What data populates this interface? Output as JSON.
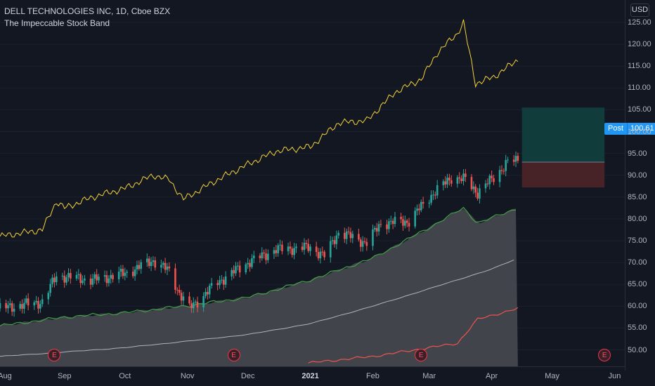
{
  "header": {
    "symbol_line": "DELL TECHNOLOGIES INC, 1D, Cboe BZX",
    "indicator_name": "The Impeccable Stock Band"
  },
  "currency": "USD",
  "position": {
    "label": "Post",
    "value": "100.61"
  },
  "earnings_marker": "E",
  "colors": {
    "background": "#131722",
    "up_candle": "#26a69a",
    "down_candle": "#ef5350",
    "upper_line": "#f5d33b",
    "band_fill": "#4a4c52",
    "band_upper": "#43a047",
    "band_lower": "#ef5350",
    "mid_line": "#b0b3b8",
    "target_zone": "#12403f",
    "stop_zone": "#4a2429",
    "post_tag": "#2196f3"
  },
  "axis": {
    "y_ticks": [
      "125.00",
      "120.00",
      "115.00",
      "110.00",
      "105.00",
      "100.00",
      "95.00",
      "90.00",
      "85.00",
      "80.00",
      "75.00",
      "70.00",
      "65.00",
      "60.00",
      "55.00",
      "50.00"
    ],
    "x_ticks": [
      {
        "label": "Aug",
        "year": false
      },
      {
        "label": "Sep",
        "year": false
      },
      {
        "label": "Oct",
        "year": false
      },
      {
        "label": "Nov",
        "year": false
      },
      {
        "label": "Dec",
        "year": false
      },
      {
        "label": "2021",
        "year": true
      },
      {
        "label": "Feb",
        "year": false
      },
      {
        "label": "Mar",
        "year": false
      },
      {
        "label": "Apr",
        "year": false
      },
      {
        "label": "May",
        "year": false
      },
      {
        "label": "Jun",
        "year": false
      }
    ]
  },
  "chart_data": {
    "type": "candlestick",
    "title": "DELL TECHNOLOGIES INC, 1D, Cboe BZX",
    "y_range": [
      47,
      129
    ],
    "x_range": [
      "2020-07-31",
      "2021-06-05"
    ],
    "price_anchors": [
      {
        "date": "2020-07-31",
        "close": 59.5
      },
      {
        "date": "2020-08-14",
        "close": 60.5
      },
      {
        "date": "2020-08-21",
        "close": 61.0
      },
      {
        "date": "2020-08-28",
        "close": 67.0
      },
      {
        "date": "2020-09-15",
        "close": 66.0
      },
      {
        "date": "2020-10-01",
        "close": 67.5
      },
      {
        "date": "2020-10-15",
        "close": 70.5
      },
      {
        "date": "2020-10-23",
        "close": 68.0
      },
      {
        "date": "2020-10-28",
        "close": 63.0
      },
      {
        "date": "2020-11-02",
        "close": 59.5
      },
      {
        "date": "2020-11-16",
        "close": 65.5
      },
      {
        "date": "2020-12-01",
        "close": 70.0
      },
      {
        "date": "2020-12-15",
        "close": 73.0
      },
      {
        "date": "2021-01-01",
        "close": 73.5
      },
      {
        "date": "2021-01-08",
        "close": 71.5
      },
      {
        "date": "2021-01-15",
        "close": 77.0
      },
      {
        "date": "2021-01-29",
        "close": 74.5
      },
      {
        "date": "2021-02-05",
        "close": 79.0
      },
      {
        "date": "2021-02-19",
        "close": 79.5
      },
      {
        "date": "2021-03-01",
        "close": 85.0
      },
      {
        "date": "2021-03-12",
        "close": 89.5
      },
      {
        "date": "2021-03-19",
        "close": 89.0
      },
      {
        "date": "2021-03-25",
        "close": 86.0
      },
      {
        "date": "2021-04-02",
        "close": 89.5
      },
      {
        "date": "2021-04-09",
        "close": 93.0
      },
      {
        "date": "2021-04-14",
        "close": 93.5
      }
    ],
    "upper_line": [
      {
        "date": "2020-07-31",
        "value": 76.0
      },
      {
        "date": "2020-08-21",
        "value": 77.5
      },
      {
        "date": "2020-08-28",
        "value": 84.0
      },
      {
        "date": "2020-09-01",
        "value": 82.5
      },
      {
        "date": "2020-09-15",
        "value": 85.0
      },
      {
        "date": "2020-10-01",
        "value": 87.0
      },
      {
        "date": "2020-10-15",
        "value": 90.0
      },
      {
        "date": "2020-10-23",
        "value": 89.0
      },
      {
        "date": "2020-10-30",
        "value": 84.5
      },
      {
        "date": "2020-11-16",
        "value": 89.0
      },
      {
        "date": "2020-12-01",
        "value": 92.5
      },
      {
        "date": "2020-12-15",
        "value": 95.5
      },
      {
        "date": "2021-01-01",
        "value": 96.5
      },
      {
        "date": "2021-01-15",
        "value": 102.0
      },
      {
        "date": "2021-01-29",
        "value": 102.5
      },
      {
        "date": "2021-02-12",
        "value": 109.0
      },
      {
        "date": "2021-02-25",
        "value": 112.0
      },
      {
        "date": "2021-03-05",
        "value": 118.0
      },
      {
        "date": "2021-03-15",
        "value": 122.5
      },
      {
        "date": "2021-03-18",
        "value": 125.0
      },
      {
        "date": "2021-03-24",
        "value": 111.0
      },
      {
        "date": "2021-04-02",
        "value": 112.5
      },
      {
        "date": "2021-04-14",
        "value": 116.5
      }
    ],
    "band_upper": [
      {
        "date": "2020-07-31",
        "value": 55.5
      },
      {
        "date": "2020-09-01",
        "value": 57.5
      },
      {
        "date": "2020-10-01",
        "value": 58.5
      },
      {
        "date": "2020-10-30",
        "value": 60.0
      },
      {
        "date": "2020-12-01",
        "value": 62.0
      },
      {
        "date": "2021-01-01",
        "value": 66.0
      },
      {
        "date": "2021-02-01",
        "value": 71.0
      },
      {
        "date": "2021-03-01",
        "value": 78.0
      },
      {
        "date": "2021-03-18",
        "value": 82.5
      },
      {
        "date": "2021-03-25",
        "value": 79.0
      },
      {
        "date": "2021-04-14",
        "value": 82.5
      }
    ],
    "band_middle": [
      {
        "date": "2020-07-31",
        "value": 48.5
      },
      {
        "date": "2020-09-01",
        "value": 49.5
      },
      {
        "date": "2020-10-01",
        "value": 50.5
      },
      {
        "date": "2020-11-01",
        "value": 52.0
      },
      {
        "date": "2020-12-01",
        "value": 53.5
      },
      {
        "date": "2021-01-01",
        "value": 56.0
      },
      {
        "date": "2021-02-01",
        "value": 60.0
      },
      {
        "date": "2021-03-01",
        "value": 64.0
      },
      {
        "date": "2021-04-01",
        "value": 68.5
      },
      {
        "date": "2021-04-14",
        "value": 71.0
      }
    ],
    "band_lower": [
      {
        "date": "2020-12-31",
        "value": 47.0
      },
      {
        "date": "2021-02-01",
        "value": 48.5
      },
      {
        "date": "2021-03-01",
        "value": 50.5
      },
      {
        "date": "2021-03-15",
        "value": 51.5
      },
      {
        "date": "2021-03-25",
        "value": 57.0
      },
      {
        "date": "2021-04-14",
        "value": 59.5
      }
    ],
    "position_tool": {
      "entry": 93.0,
      "target": 105.5,
      "stop": 87.2,
      "start": "2021-04-16",
      "end": "2021-05-27"
    },
    "earnings_dates": [
      "2020-08-27",
      "2020-11-24",
      "2021-02-25",
      "2021-05-27"
    ]
  }
}
